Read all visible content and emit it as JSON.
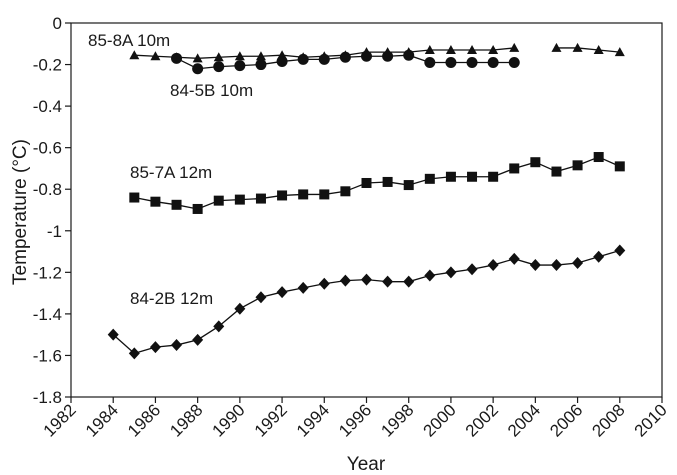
{
  "chart_data": {
    "type": "line",
    "xlabel": "Year",
    "ylabel": "Temperature (°C)",
    "xlim": [
      1982,
      2010
    ],
    "ylim": [
      -1.8,
      0
    ],
    "x_ticks": [
      "1982",
      "1984",
      "1986",
      "1988",
      "1990",
      "1992",
      "1994",
      "1996",
      "1998",
      "2000",
      "2002",
      "2004",
      "2006",
      "2008",
      "2010"
    ],
    "y_ticks": [
      "0",
      "-0.2",
      "-0.4",
      "-0.6",
      "-0.8",
      "-1",
      "-1.2",
      "-1.4",
      "-1.6",
      "-1.8"
    ],
    "grid": false,
    "legend": "none",
    "series": [
      {
        "name": "85-8A 10m",
        "marker": "triangle",
        "segments": [
          {
            "x": [
              1985,
              1986,
              1987,
              1988,
              1989,
              1990,
              1991,
              1992,
              1993,
              1994,
              1995,
              1996,
              1997,
              1998,
              1999,
              2000,
              2001,
              2002,
              2003
            ],
            "y": [
              -0.155,
              -0.16,
              -0.165,
              -0.17,
              -0.165,
              -0.16,
              -0.16,
              -0.155,
              -0.165,
              -0.16,
              -0.155,
              -0.14,
              -0.14,
              -0.14,
              -0.13,
              -0.13,
              -0.13,
              -0.13,
              -0.12
            ]
          },
          {
            "x": [
              2005,
              2006,
              2007,
              2008
            ],
            "y": [
              -0.12,
              -0.12,
              -0.13,
              -0.14
            ]
          }
        ]
      },
      {
        "name": "84-5B 10m",
        "marker": "circle",
        "segments": [
          {
            "x": [
              1987,
              1988,
              1989,
              1990,
              1991,
              1992,
              1993,
              1994,
              1995,
              1996,
              1997,
              1998,
              1999,
              2000,
              2001,
              2002,
              2003
            ],
            "y": [
              -0.17,
              -0.22,
              -0.21,
              -0.205,
              -0.2,
              -0.185,
              -0.175,
              -0.175,
              -0.165,
              -0.16,
              -0.16,
              -0.155,
              -0.19,
              -0.19,
              -0.19,
              -0.19,
              -0.19
            ]
          }
        ]
      },
      {
        "name": "85-7A 12m",
        "marker": "square",
        "segments": [
          {
            "x": [
              1985,
              1986,
              1987,
              1988,
              1989,
              1990,
              1991,
              1992,
              1993,
              1994,
              1995,
              1996,
              1997,
              1998,
              1999,
              2000,
              2001,
              2002,
              2003,
              2004,
              2005,
              2006,
              2007,
              2008
            ],
            "y": [
              -0.84,
              -0.86,
              -0.875,
              -0.895,
              -0.855,
              -0.85,
              -0.845,
              -0.83,
              -0.825,
              -0.825,
              -0.81,
              -0.77,
              -0.765,
              -0.78,
              -0.75,
              -0.74,
              -0.74,
              -0.74,
              -0.7,
              -0.67,
              -0.715,
              -0.685,
              -0.645,
              -0.69
            ]
          }
        ]
      },
      {
        "name": "84-2B 12m",
        "marker": "diamond",
        "segments": [
          {
            "x": [
              1984,
              1985,
              1986,
              1987,
              1988,
              1989,
              1990,
              1991,
              1992,
              1993,
              1994,
              1995,
              1996,
              1997,
              1998,
              1999,
              2000,
              2001,
              2002,
              2003,
              2004,
              2005,
              2006,
              2007,
              2008
            ],
            "y": [
              -1.5,
              -1.59,
              -1.56,
              -1.55,
              -1.525,
              -1.46,
              -1.375,
              -1.32,
              -1.295,
              -1.275,
              -1.255,
              -1.24,
              -1.235,
              -1.245,
              -1.245,
              -1.215,
              -1.2,
              -1.185,
              -1.165,
              -1.135,
              -1.165,
              -1.165,
              -1.155,
              -1.125,
              -1.095
            ]
          }
        ]
      }
    ]
  }
}
